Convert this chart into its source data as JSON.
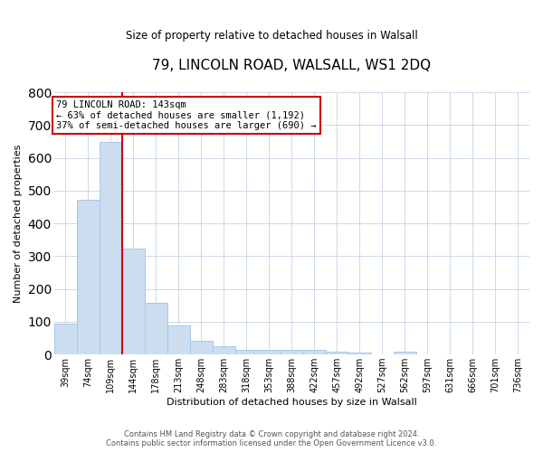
{
  "title": "79, LINCOLN ROAD, WALSALL, WS1 2DQ",
  "subtitle": "Size of property relative to detached houses in Walsall",
  "xlabel": "Distribution of detached houses by size in Walsall",
  "ylabel": "Number of detached properties",
  "bar_labels": [
    "39sqm",
    "74sqm",
    "109sqm",
    "144sqm",
    "178sqm",
    "213sqm",
    "248sqm",
    "283sqm",
    "318sqm",
    "353sqm",
    "388sqm",
    "422sqm",
    "457sqm",
    "492sqm",
    "527sqm",
    "562sqm",
    "597sqm",
    "631sqm",
    "666sqm",
    "701sqm",
    "736sqm"
  ],
  "bar_values": [
    95,
    472,
    648,
    322,
    157,
    88,
    43,
    26,
    15,
    14,
    15,
    14,
    8,
    5,
    0,
    8,
    0,
    0,
    0,
    0,
    0
  ],
  "bar_color": "#ccddf0",
  "bar_edge_color": "#a8c8e8",
  "vline_color": "#cc0000",
  "annotation_text": "79 LINCOLN ROAD: 143sqm\n← 63% of detached houses are smaller (1,192)\n37% of semi-detached houses are larger (690) →",
  "annotation_box_color": "#cc0000",
  "ylim": [
    0,
    800
  ],
  "yticks": [
    0,
    100,
    200,
    300,
    400,
    500,
    600,
    700,
    800
  ],
  "bg_color": "#ffffff",
  "grid_color": "#ccd8e8",
  "footer_line1": "Contains HM Land Registry data © Crown copyright and database right 2024.",
  "footer_line2": "Contains public sector information licensed under the Open Government Licence v3.0."
}
